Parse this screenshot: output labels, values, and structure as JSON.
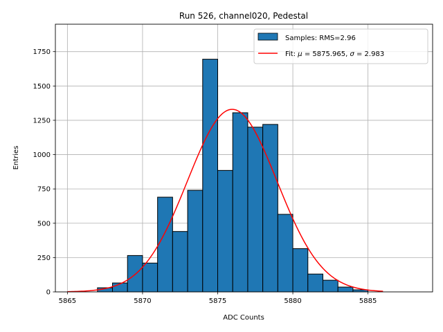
{
  "chart_data": {
    "type": "bar",
    "title": "Run 526, channel020, Pedestal",
    "xlabel": "ADC Counts",
    "ylabel": "Entries",
    "xlim": [
      5864.2,
      5889.3
    ],
    "ylim": [
      0,
      1950
    ],
    "grid": true,
    "legend_position": "top-right",
    "xticks": [
      5865,
      5870,
      5875,
      5880,
      5885
    ],
    "yticks": [
      0,
      250,
      500,
      750,
      1000,
      1250,
      1500,
      1750
    ],
    "histogram": {
      "name": "Samples: RMS=2.96",
      "bin_width": 1,
      "bin_starts": [
        5867,
        5868,
        5869,
        5870,
        5871,
        5872,
        5873,
        5874,
        5875,
        5876,
        5877,
        5878,
        5879,
        5880,
        5881,
        5882,
        5883,
        5884
      ],
      "values": [
        30,
        65,
        265,
        210,
        690,
        440,
        740,
        1695,
        885,
        1305,
        1200,
        1220,
        565,
        315,
        130,
        85,
        35,
        15
      ],
      "color": "#1f77b4",
      "edge_color": "#000000"
    },
    "fit": {
      "name": "Fit: μ = 5875.965, σ = 2.983",
      "mu": 5875.965,
      "sigma": 2.983,
      "amplitude": 1330,
      "x_range": [
        5865,
        5886
      ],
      "color": "#ff0000"
    }
  },
  "legend": {
    "samples_label": "Samples: RMS=2.96",
    "fit_prefix": "Fit: ",
    "fit_mu_symbol": "μ",
    "fit_mu_value": " = 5875.965, ",
    "fit_sigma_symbol": "σ",
    "fit_sigma_value": " = 2.983"
  }
}
